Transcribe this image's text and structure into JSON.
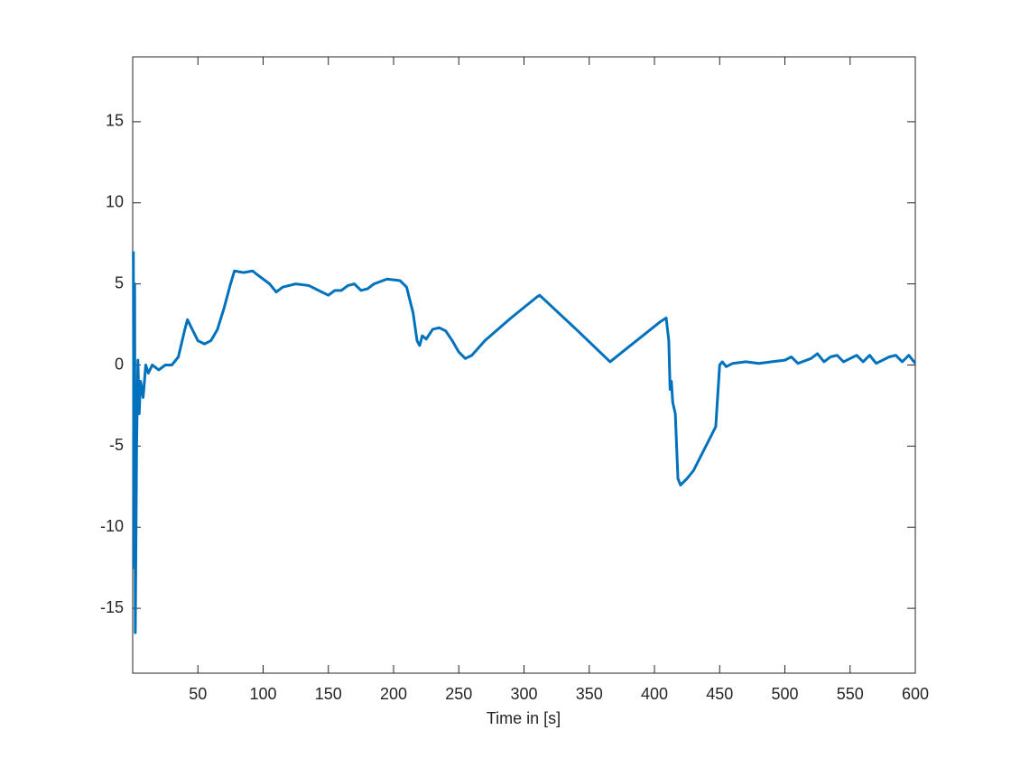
{
  "chart_data": {
    "type": "line",
    "xlabel": "Time in [s]",
    "x": [
      0.5,
      1,
      1.5,
      2,
      3,
      4,
      5,
      6,
      8,
      10,
      12,
      15,
      20,
      25,
      30,
      35,
      40,
      42,
      45,
      50,
      55,
      60,
      65,
      70,
      75,
      78,
      85,
      92,
      95,
      105,
      110,
      115,
      125,
      135,
      145,
      150,
      155,
      160,
      165,
      170,
      175,
      180,
      185,
      195,
      205,
      210,
      215,
      218,
      220,
      222,
      225,
      230,
      235,
      240,
      245,
      250,
      255,
      260,
      270,
      290,
      310,
      312,
      340,
      366,
      380,
      405,
      409,
      411,
      412,
      413,
      414,
      416,
      418,
      420,
      425,
      430,
      447,
      450,
      452,
      455,
      460,
      470,
      480,
      490,
      500,
      505,
      510,
      520,
      525,
      530,
      535,
      540,
      545,
      550,
      555,
      560,
      565,
      570,
      580,
      585,
      590,
      595,
      600
    ],
    "series": [
      {
        "color": "#0072bd",
        "values": [
          7,
          -12.5,
          5,
          -16.5,
          -5,
          0.3,
          -3,
          -1,
          -2,
          0,
          -0.5,
          0,
          -0.3,
          0,
          0,
          0.5,
          2.2,
          2.8,
          2.3,
          1.5,
          1.3,
          1.5,
          2.2,
          3.5,
          5,
          5.8,
          5.7,
          5.8,
          5.6,
          5,
          4.5,
          4.8,
          5,
          4.9,
          4.5,
          4.3,
          4.6,
          4.6,
          4.9,
          5,
          4.6,
          4.7,
          5,
          5.3,
          5.2,
          4.8,
          3.2,
          1.5,
          1.2,
          1.8,
          1.6,
          2.2,
          2.3,
          2.1,
          1.5,
          0.8,
          0.4,
          0.6,
          1.5,
          2.9,
          4.2,
          4.3,
          2.2,
          0.2,
          1.1,
          2.7,
          2.9,
          1.5,
          -1.5,
          -1,
          -2.3,
          -3,
          -7,
          -7.4,
          -7,
          -6.5,
          -3.8,
          0,
          0.2,
          -0.1,
          0.1,
          0.2,
          0.1,
          0.2,
          0.3,
          0.5,
          0.1,
          0.4,
          0.7,
          0.2,
          0.5,
          0.6,
          0.2,
          0.4,
          0.6,
          0.2,
          0.6,
          0.1,
          0.5,
          0.6,
          0.2,
          0.6,
          0.1
        ]
      }
    ],
    "xlim": [
      0,
      600
    ],
    "xticks": [
      50,
      100,
      150,
      200,
      250,
      300,
      350,
      400,
      450,
      500,
      550,
      600
    ],
    "ylim": [
      -19,
      19
    ],
    "yticks": [
      -15,
      -10,
      -5,
      0,
      5,
      10,
      15
    ]
  }
}
